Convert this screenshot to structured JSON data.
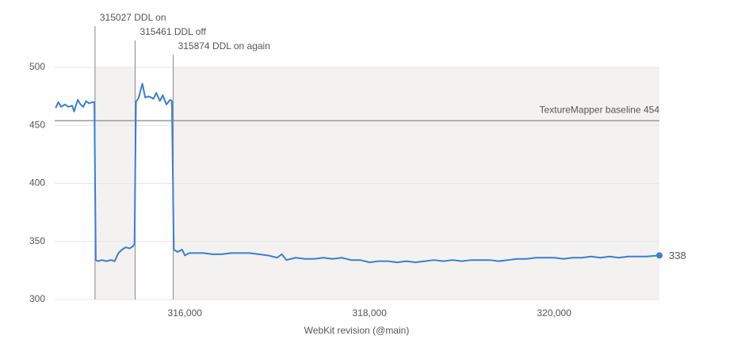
{
  "chart_data": {
    "type": "line",
    "x_label": "WebKit revision (@main)",
    "xlim": [
      314590,
      321140
    ],
    "xticks": [
      {
        "value": 316000,
        "label": "316,000"
      },
      {
        "value": 318000,
        "label": "318,000"
      },
      {
        "value": 320000,
        "label": "320,000"
      }
    ],
    "ylim": [
      300,
      500
    ],
    "yticks": [
      300,
      350,
      400,
      450,
      500
    ],
    "grid": true,
    "annotations": [
      {
        "x": 315027,
        "label": "315027 DDL on"
      },
      {
        "x": 315461,
        "label": "315461 DDL off"
      },
      {
        "x": 315874,
        "label": "315874 DDL on again"
      }
    ],
    "baseline": {
      "value": 454,
      "label": "TextureMapper baseline 454"
    },
    "series": [
      {
        "color": "#3b7dd8",
        "x": [
          314600,
          314630,
          314660,
          314700,
          314740,
          314780,
          314800,
          314840,
          314870,
          314900,
          314930,
          314960,
          315000,
          315020,
          315035,
          315060,
          315100,
          315150,
          315200,
          315240,
          315280,
          315320,
          315360,
          315400,
          315440,
          315455,
          315470,
          315500,
          315540,
          315570,
          315610,
          315660,
          315690,
          315730,
          315760,
          315800,
          315840,
          315860,
          315880,
          315920,
          315970,
          316000,
          316050,
          316100,
          316200,
          316300,
          316400,
          316500,
          316600,
          316700,
          316800,
          316900,
          317000,
          317050,
          317100,
          317200,
          317300,
          317400,
          317500,
          317600,
          317700,
          317800,
          317900,
          318000,
          318100,
          318200,
          318300,
          318400,
          318500,
          318600,
          318700,
          318800,
          318900,
          319000,
          319100,
          319200,
          319300,
          319400,
          319500,
          319600,
          319700,
          319800,
          319900,
          320000,
          320100,
          320200,
          320300,
          320400,
          320500,
          320600,
          320700,
          320800,
          320900,
          321000,
          321140
        ],
        "values": [
          465,
          470,
          466,
          468,
          466,
          467,
          462,
          472,
          468,
          466,
          471,
          469,
          470,
          470,
          334,
          333,
          334,
          333,
          334,
          333,
          340,
          343,
          345,
          344,
          346,
          348,
          470,
          474,
          486,
          474,
          475,
          473,
          478,
          471,
          476,
          468,
          472,
          471,
          343,
          341,
          343,
          338,
          340,
          340,
          340,
          339,
          339,
          340,
          340,
          340,
          339,
          338,
          336,
          339,
          334,
          336,
          335,
          335,
          336,
          335,
          336,
          334,
          334,
          332,
          333,
          333,
          332,
          333,
          332,
          333,
          334,
          333,
          334,
          333,
          334,
          334,
          334,
          333,
          334,
          335,
          335,
          336,
          336,
          336,
          335,
          336,
          336,
          337,
          336,
          337,
          336,
          337,
          337,
          337,
          338
        ]
      }
    ]
  }
}
